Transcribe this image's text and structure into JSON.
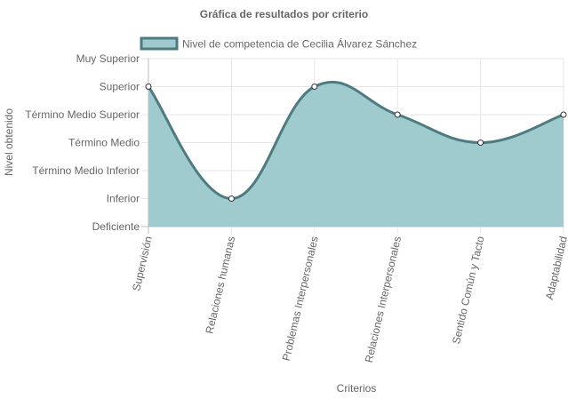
{
  "chart_data": {
    "type": "area",
    "title": "Gráfica de resultados por criterio",
    "xlabel": "Criterios",
    "ylabel": "Nivel obtenido",
    "categories": [
      "Supervisión",
      "Relaciones humanas",
      "Problemas Interpersonales",
      "Relaciones Interpersonales",
      "Sentido Común y Tacto",
      "Adaptabilidad"
    ],
    "y_levels": [
      "Deficiente",
      "Inferior",
      "Término Medio Inferior",
      "Término Medio",
      "Término Medio Superior",
      "Superior",
      "Muy Superior"
    ],
    "ylim": [
      0,
      6
    ],
    "series": [
      {
        "name": "Nivel de competencia de Cecilia Álvarez Sánchez",
        "values": [
          5,
          1,
          5,
          4,
          3,
          4
        ]
      }
    ],
    "legend": "top",
    "grid": true,
    "colors": {
      "fill": "#a0cbce",
      "line": "#4d7b80",
      "grid": "#e6e6e6",
      "text": "#666666"
    }
  }
}
